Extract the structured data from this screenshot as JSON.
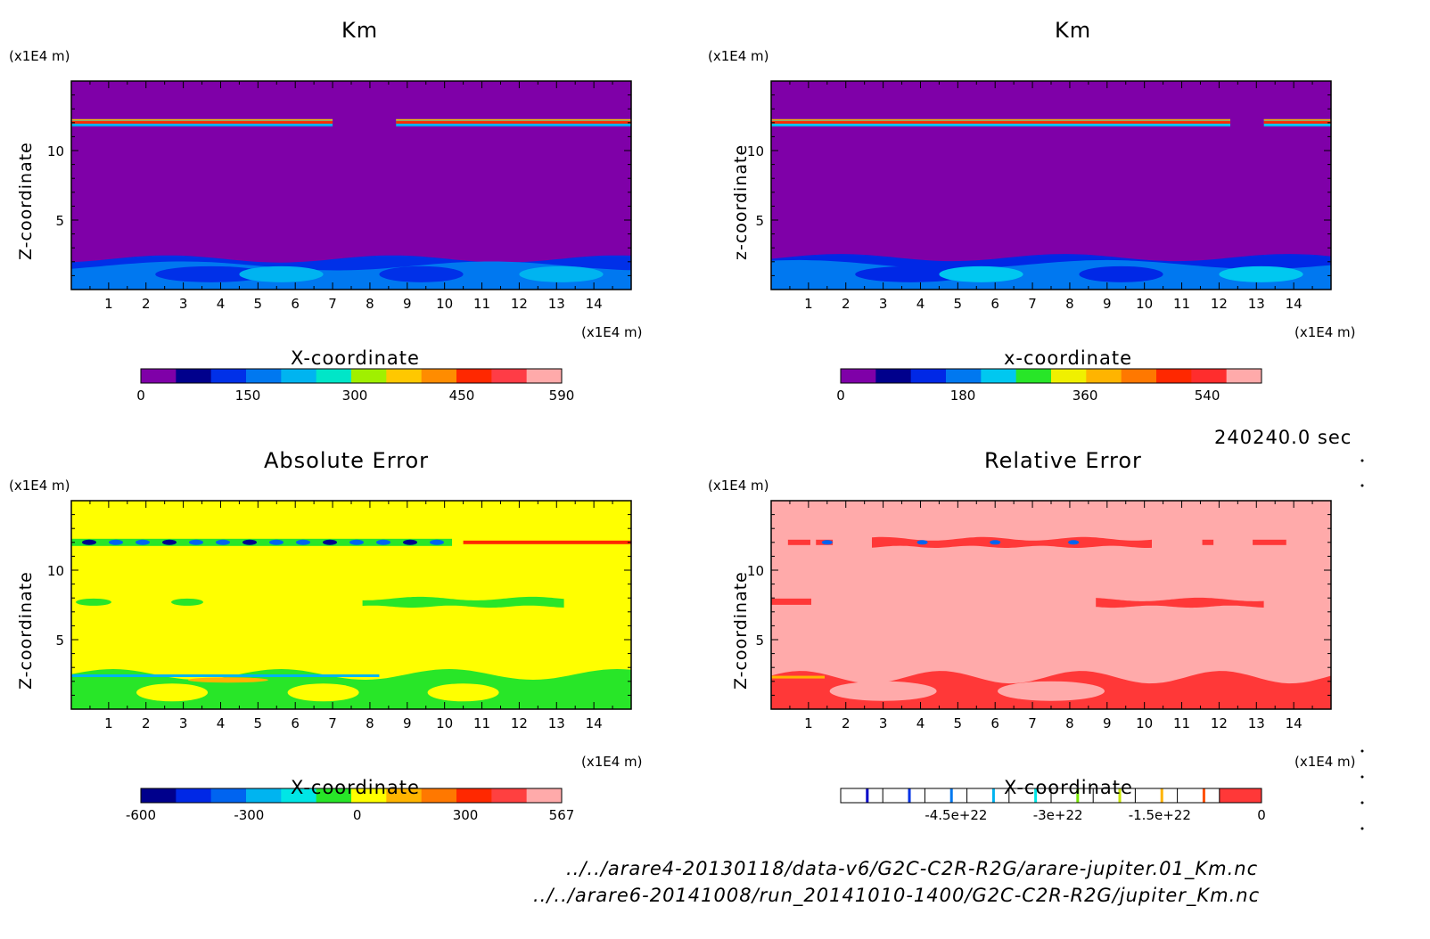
{
  "colors": {
    "km1": [
      "#7f00a8",
      "#00008c",
      "#0030e8",
      "#0078f0",
      "#00b4f0",
      "#00e6c8",
      "#a0f000",
      "#ffc800",
      "#ff8c00",
      "#ff2800",
      "#ff3c46",
      "#ffaaaa"
    ],
    "km2": [
      "#7f00a8",
      "#00008c",
      "#0028e6",
      "#0078f0",
      "#00c8f0",
      "#28e628",
      "#f0f000",
      "#ffb400",
      "#ff7800",
      "#ff2800",
      "#ff2d2d",
      "#ffaaaa"
    ],
    "abs": [
      "#00008c",
      "#0028e6",
      "#0064f0",
      "#00b4f0",
      "#00e6e6",
      "#28e628",
      "#ffff00",
      "#ffb400",
      "#ff7800",
      "#ff2800",
      "#ff4040",
      "#ffaaaa"
    ],
    "rel_bg": "#ffaaaa",
    "rel_band": "#ff3838",
    "rel_marks": [
      "#0000c8",
      "#0032e6",
      "#0078f0",
      "#00b4f0",
      "#00e6e6",
      "#78e600",
      "#c8e600",
      "#ffb400",
      "#ff5000"
    ]
  },
  "panels": [
    {
      "title": "Km",
      "xlabel": "X-coordinate",
      "zlabel": "Z-coordinate",
      "unit_top": "(x1E4 m)",
      "unit_x": "(x1E4 m)",
      "cb_ticks": [
        "0",
        "150",
        "300",
        "450",
        "590"
      ]
    },
    {
      "title": "Km",
      "xlabel": "x-coordinate",
      "zlabel": "z-coordinate",
      "unit_top": "(x1E4 m)",
      "unit_x": "(x1E4 m)",
      "cb_ticks": [
        "0",
        "180",
        "360",
        "540"
      ]
    },
    {
      "title": "Absolute Error",
      "xlabel": "X-coordinate",
      "zlabel": "Z-coordinate",
      "unit_top": "(x1E4 m)",
      "unit_x": "(x1E4 m)",
      "cb_ticks": [
        "-600",
        "-300",
        "0",
        "300",
        "567"
      ]
    },
    {
      "title": "Relative Error",
      "xlabel": "X-coordinate",
      "zlabel": "Z-coordinate",
      "unit_top": "(x1E4 m)",
      "unit_x": "(x1E4 m)",
      "cb_ticks": [
        "-4.5e+22",
        "-3e+22",
        "-1.5e+22",
        "0"
      ]
    }
  ],
  "time_label": "240240.0 sec",
  "source_files": [
    "../../arare4-20130118/data-v6/G2C-C2R-R2G/arare-jupiter.01_Km.nc",
    "../../arare6-20141008/run_20141010-1400/G2C-C2R-R2G/jupiter_Km.nc"
  ],
  "chart_data": [
    {
      "type": "heatmap",
      "title": "Km",
      "xlabel": "X-coordinate",
      "ylabel": "Z-coordinate",
      "x_unit": "(x1E4 m)",
      "y_unit": "(x1E4 m)",
      "x_ticks": [
        1,
        2,
        3,
        4,
        5,
        6,
        7,
        8,
        9,
        10,
        11,
        12,
        13,
        14
      ],
      "y_ticks": [
        5,
        10
      ],
      "xlim": [
        0,
        15
      ],
      "ylim": [
        0,
        15
      ],
      "colorbar_ticks": [
        0,
        150,
        300,
        450,
        590
      ],
      "features": [
        {
          "z_range": [
            0,
            2.2
          ],
          "range": [
            150,
            300
          ],
          "region": "bottom layer"
        },
        {
          "z": 12,
          "range": [
            300,
            590
          ],
          "region": "thin layer, x 0-7 and 8.7-15"
        }
      ]
    },
    {
      "type": "heatmap",
      "title": "Km",
      "xlabel": "x-coordinate",
      "ylabel": "z-coordinate",
      "x_unit": "(x1E4 m)",
      "y_unit": "(x1E4 m)",
      "x_ticks": [
        1,
        2,
        3,
        4,
        5,
        6,
        7,
        8,
        9,
        10,
        11,
        12,
        13,
        14
      ],
      "y_ticks": [
        5,
        10
      ],
      "xlim": [
        0,
        15
      ],
      "ylim": [
        0,
        15
      ],
      "colorbar_ticks": [
        0,
        180,
        360,
        540
      ],
      "features": [
        {
          "z_range": [
            0,
            2.3
          ],
          "range": [
            180,
            360
          ],
          "region": "bottom layer"
        },
        {
          "z": 12,
          "range": [
            360,
            590
          ],
          "region": "thin layer, x 0-12.3 and 13.2-15"
        }
      ]
    },
    {
      "type": "heatmap",
      "title": "Absolute Error",
      "xlabel": "X-coordinate",
      "ylabel": "Z-coordinate",
      "x_unit": "(x1E4 m)",
      "y_unit": "(x1E4 m)",
      "x_ticks": [
        1,
        2,
        3,
        4,
        5,
        6,
        7,
        8,
        9,
        10,
        11,
        12,
        13,
        14
      ],
      "y_ticks": [
        5,
        10
      ],
      "xlim": [
        0,
        15
      ],
      "ylim": [
        0,
        15
      ],
      "colorbar_ticks": [
        -600,
        -300,
        0,
        300,
        567
      ],
      "background_value": 0
    },
    {
      "type": "heatmap",
      "title": "Relative Error",
      "xlabel": "X-coordinate",
      "ylabel": "Z-coordinate",
      "x_unit": "(x1E4 m)",
      "y_unit": "(x1E4 m)",
      "x_ticks": [
        1,
        2,
        3,
        4,
        5,
        6,
        7,
        8,
        9,
        10,
        11,
        12,
        13,
        14
      ],
      "y_ticks": [
        5,
        10
      ],
      "xlim": [
        0,
        15
      ],
      "ylim": [
        0,
        15
      ],
      "colorbar_ticks": [
        -4.5e+22,
        -3e+22,
        -1.5e+22,
        0
      ],
      "background_value": 0
    }
  ]
}
